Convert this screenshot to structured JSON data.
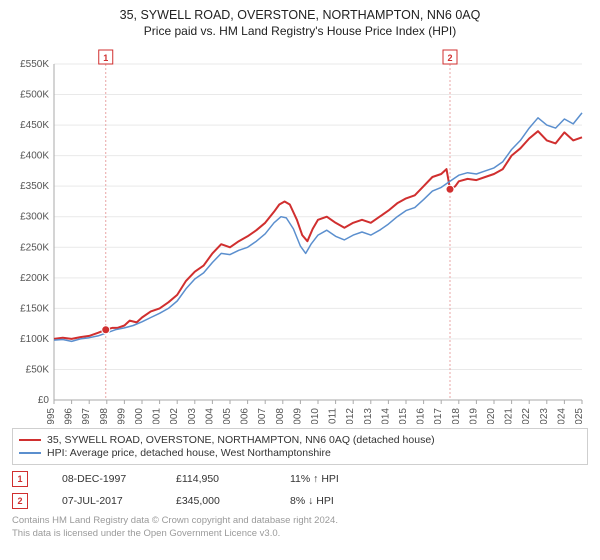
{
  "header": {
    "title": "35, SYWELL ROAD, OVERSTONE, NORTHAMPTON, NN6 0AQ",
    "subtitle": "Price paid vs. HM Land Registry's House Price Index (HPI)"
  },
  "chart": {
    "type": "line",
    "background_color": "#ffffff",
    "grid_color": "#e9e9e9",
    "axis_color": "#aaaaaa",
    "label_color": "#555555",
    "label_fontsize": 10,
    "x_years": [
      1995,
      1996,
      1997,
      1998,
      1999,
      2000,
      2001,
      2002,
      2003,
      2004,
      2005,
      2006,
      2007,
      2008,
      2009,
      2010,
      2011,
      2012,
      2013,
      2014,
      2015,
      2016,
      2017,
      2018,
      2019,
      2020,
      2021,
      2022,
      2023,
      2024,
      2025
    ],
    "ylim": [
      0,
      550000
    ],
    "ytick_step": 50000,
    "ytick_format_prefix": "£",
    "ytick_format_suffix": "K",
    "series": [
      {
        "name": "35, SYWELL ROAD, OVERSTONE, NORTHAMPTON, NN6 0AQ (detached house)",
        "color": "#d02f2f",
        "line_width": 2,
        "data": [
          [
            1995.0,
            100000
          ],
          [
            1995.5,
            102000
          ],
          [
            1996.0,
            100000
          ],
          [
            1996.5,
            103000
          ],
          [
            1997.0,
            105000
          ],
          [
            1997.5,
            110000
          ],
          [
            1997.94,
            114950
          ],
          [
            1998.3,
            118000
          ],
          [
            1998.6,
            118000
          ],
          [
            1999.0,
            122000
          ],
          [
            1999.3,
            130000
          ],
          [
            1999.7,
            127000
          ],
          [
            2000.0,
            135000
          ],
          [
            2000.5,
            145000
          ],
          [
            2001.0,
            150000
          ],
          [
            2001.5,
            160000
          ],
          [
            2002.0,
            172000
          ],
          [
            2002.5,
            195000
          ],
          [
            2003.0,
            210000
          ],
          [
            2003.5,
            220000
          ],
          [
            2004.0,
            240000
          ],
          [
            2004.5,
            255000
          ],
          [
            2005.0,
            250000
          ],
          [
            2005.5,
            260000
          ],
          [
            2006.0,
            268000
          ],
          [
            2006.5,
            278000
          ],
          [
            2007.0,
            290000
          ],
          [
            2007.5,
            308000
          ],
          [
            2007.8,
            320000
          ],
          [
            2008.1,
            325000
          ],
          [
            2008.4,
            320000
          ],
          [
            2008.8,
            295000
          ],
          [
            2009.1,
            270000
          ],
          [
            2009.4,
            260000
          ],
          [
            2009.7,
            280000
          ],
          [
            2010.0,
            295000
          ],
          [
            2010.5,
            300000
          ],
          [
            2011.0,
            290000
          ],
          [
            2011.5,
            282000
          ],
          [
            2012.0,
            290000
          ],
          [
            2012.5,
            295000
          ],
          [
            2013.0,
            290000
          ],
          [
            2013.5,
            300000
          ],
          [
            2014.0,
            310000
          ],
          [
            2014.5,
            322000
          ],
          [
            2015.0,
            330000
          ],
          [
            2015.5,
            335000
          ],
          [
            2016.0,
            350000
          ],
          [
            2016.5,
            365000
          ],
          [
            2017.0,
            370000
          ],
          [
            2017.3,
            378000
          ],
          [
            2017.5,
            345000
          ],
          [
            2017.8,
            350000
          ],
          [
            2018.0,
            358000
          ],
          [
            2018.5,
            362000
          ],
          [
            2019.0,
            360000
          ],
          [
            2019.5,
            365000
          ],
          [
            2020.0,
            370000
          ],
          [
            2020.5,
            378000
          ],
          [
            2021.0,
            400000
          ],
          [
            2021.5,
            412000
          ],
          [
            2022.0,
            428000
          ],
          [
            2022.5,
            440000
          ],
          [
            2023.0,
            425000
          ],
          [
            2023.5,
            420000
          ],
          [
            2024.0,
            438000
          ],
          [
            2024.5,
            425000
          ],
          [
            2025.0,
            430000
          ]
        ]
      },
      {
        "name": "HPI: Average price, detached house, West Northamptonshire",
        "color": "#5b8fce",
        "line_width": 1.5,
        "data": [
          [
            1995.0,
            98000
          ],
          [
            1995.5,
            99000
          ],
          [
            1996.0,
            96000
          ],
          [
            1996.5,
            100000
          ],
          [
            1997.0,
            102000
          ],
          [
            1997.5,
            105000
          ],
          [
            1998.0,
            110000
          ],
          [
            1998.5,
            115000
          ],
          [
            1999.0,
            118000
          ],
          [
            1999.5,
            122000
          ],
          [
            2000.0,
            128000
          ],
          [
            2000.5,
            135000
          ],
          [
            2001.0,
            142000
          ],
          [
            2001.5,
            150000
          ],
          [
            2002.0,
            162000
          ],
          [
            2002.5,
            182000
          ],
          [
            2003.0,
            198000
          ],
          [
            2003.5,
            208000
          ],
          [
            2004.0,
            225000
          ],
          [
            2004.5,
            240000
          ],
          [
            2005.0,
            238000
          ],
          [
            2005.5,
            245000
          ],
          [
            2006.0,
            250000
          ],
          [
            2006.5,
            260000
          ],
          [
            2007.0,
            272000
          ],
          [
            2007.5,
            290000
          ],
          [
            2007.9,
            300000
          ],
          [
            2008.2,
            298000
          ],
          [
            2008.6,
            280000
          ],
          [
            2009.0,
            252000
          ],
          [
            2009.3,
            240000
          ],
          [
            2009.6,
            255000
          ],
          [
            2010.0,
            270000
          ],
          [
            2010.5,
            278000
          ],
          [
            2011.0,
            268000
          ],
          [
            2011.5,
            262000
          ],
          [
            2012.0,
            270000
          ],
          [
            2012.5,
            275000
          ],
          [
            2013.0,
            270000
          ],
          [
            2013.5,
            278000
          ],
          [
            2014.0,
            288000
          ],
          [
            2014.5,
            300000
          ],
          [
            2015.0,
            310000
          ],
          [
            2015.5,
            315000
          ],
          [
            2016.0,
            328000
          ],
          [
            2016.5,
            342000
          ],
          [
            2017.0,
            348000
          ],
          [
            2017.5,
            358000
          ],
          [
            2018.0,
            368000
          ],
          [
            2018.5,
            372000
          ],
          [
            2019.0,
            370000
          ],
          [
            2019.5,
            375000
          ],
          [
            2020.0,
            380000
          ],
          [
            2020.5,
            390000
          ],
          [
            2021.0,
            410000
          ],
          [
            2021.5,
            425000
          ],
          [
            2022.0,
            445000
          ],
          [
            2022.5,
            462000
          ],
          [
            2023.0,
            450000
          ],
          [
            2023.5,
            445000
          ],
          [
            2024.0,
            460000
          ],
          [
            2024.5,
            452000
          ],
          [
            2025.0,
            470000
          ]
        ]
      }
    ],
    "markers": [
      {
        "n": "1",
        "x": 1997.94,
        "y": 114950,
        "line_color": "#e8a4a4",
        "dot_color": "#d02f2f"
      },
      {
        "n": "2",
        "x": 2017.5,
        "y": 345000,
        "line_color": "#e8a4a4",
        "dot_color": "#d02f2f"
      }
    ]
  },
  "legend": {
    "items": [
      {
        "color": "#d02f2f",
        "label": "35, SYWELL ROAD, OVERSTONE, NORTHAMPTON, NN6 0AQ (detached house)"
      },
      {
        "color": "#5b8fce",
        "label": "HPI: Average price, detached house, West Northamptonshire"
      }
    ]
  },
  "transactions": [
    {
      "n": "1",
      "date": "08-DEC-1997",
      "price": "£114,950",
      "delta": "11% ↑ HPI"
    },
    {
      "n": "2",
      "date": "07-JUL-2017",
      "price": "£345,000",
      "delta": "8% ↓ HPI"
    }
  ],
  "footer": {
    "line1": "Contains HM Land Registry data © Crown copyright and database right 2024.",
    "line2": "This data is licensed under the Open Government Licence v3.0."
  }
}
